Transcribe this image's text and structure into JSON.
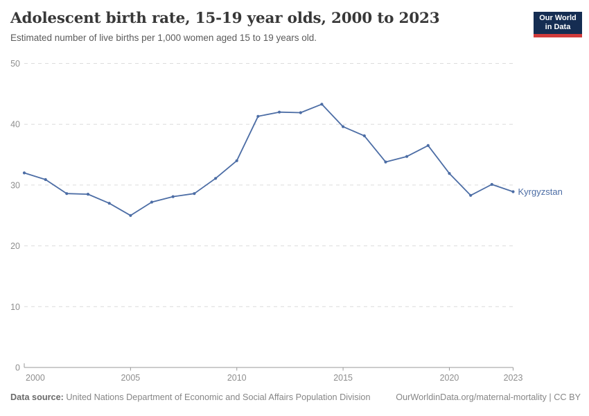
{
  "header": {
    "title": "Adolescent birth rate, 15-19 year olds, 2000 to 2023",
    "subtitle": "Estimated number of live births per 1,000 women aged 15 to 19 years old.",
    "logo_line1": "Our World",
    "logo_line2": "in Data"
  },
  "chart_data": {
    "type": "line",
    "title": "Adolescent birth rate, 15-19 year olds, 2000 to 2023",
    "xlabel": "",
    "ylabel": "",
    "xlim": [
      2000,
      2023
    ],
    "ylim": [
      0,
      50
    ],
    "x_ticks": [
      2000,
      2005,
      2010,
      2015,
      2020,
      2023
    ],
    "y_ticks": [
      0,
      10,
      20,
      30,
      40,
      50
    ],
    "grid": "horizontal-dashed",
    "legend_position": "end-of-line-label",
    "series": [
      {
        "name": "Kyrgyzstan",
        "color": "#4c6da5",
        "x": [
          2000,
          2001,
          2002,
          2003,
          2004,
          2005,
          2006,
          2007,
          2008,
          2009,
          2010,
          2011,
          2012,
          2013,
          2014,
          2015,
          2016,
          2017,
          2018,
          2019,
          2020,
          2021,
          2022,
          2023
        ],
        "values": [
          32.0,
          30.9,
          28.6,
          28.5,
          27.0,
          25.0,
          27.2,
          28.1,
          28.6,
          31.1,
          34.0,
          41.3,
          42.0,
          41.9,
          43.3,
          39.6,
          38.1,
          33.8,
          34.7,
          36.5,
          31.9,
          28.3,
          30.1,
          28.9
        ]
      }
    ]
  },
  "footer": {
    "source_label": "Data source:",
    "source_text": "United Nations Department of Economic and Social Affairs Population Division",
    "link_text": "OurWorldinData.org/maternal-mortality | CC BY"
  },
  "colors": {
    "line": "#4c6da5",
    "logo_bg": "#152d52",
    "logo_accent": "#d13b3b",
    "grid": "#dcdcdc",
    "axis": "#9a9a9a",
    "tick_label": "#8e8e8e",
    "title": "#383838",
    "subtitle": "#5b5b5b",
    "footer": "#868686"
  }
}
